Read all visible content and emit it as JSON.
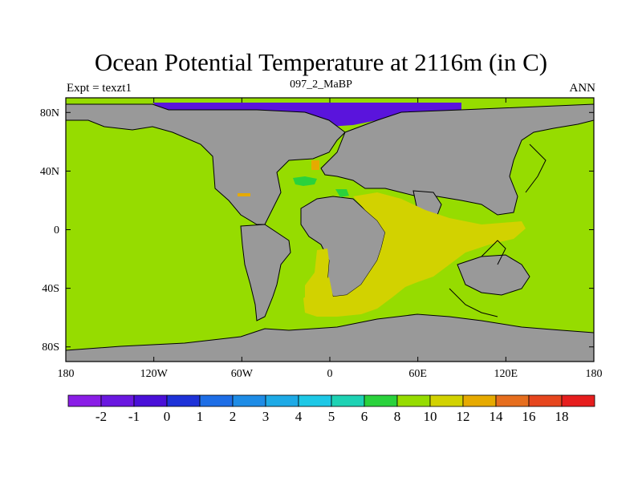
{
  "header": {
    "title": "Ocean Potential Temperature at 2116m (in C)",
    "left": "Expt = texzt1",
    "center": "097_2_MaBP",
    "right": "ANN"
  },
  "map": {
    "projection": "cylindrical-equidistant",
    "lon_range": [
      -180,
      180
    ],
    "lat_range": [
      -90,
      90
    ],
    "land_color": "#999999",
    "coastline_color": "#000000",
    "lon_ticks": [
      {
        "value": -180,
        "label": "180"
      },
      {
        "value": -120,
        "label": "120W"
      },
      {
        "value": -60,
        "label": "60W"
      },
      {
        "value": 0,
        "label": "0"
      },
      {
        "value": 60,
        "label": "60E"
      },
      {
        "value": 120,
        "label": "120E"
      },
      {
        "value": 180,
        "label": "180"
      }
    ],
    "lat_ticks": [
      {
        "value": 80,
        "label": "80N"
      },
      {
        "value": 40,
        "label": "40N"
      },
      {
        "value": 0,
        "label": "0"
      },
      {
        "value": -40,
        "label": "40S"
      },
      {
        "value": -80,
        "label": "80S"
      }
    ]
  },
  "colorbar": {
    "colors": [
      "#8a1ee6",
      "#6a18e0",
      "#4a10d8",
      "#1e32d8",
      "#1e6ee6",
      "#1e8ce6",
      "#1eaae6",
      "#1ec8e6",
      "#1ed2b4",
      "#2ad23c",
      "#96dc00",
      "#d2d200",
      "#e6aa00",
      "#e66e1e",
      "#e6461e",
      "#e61e1e"
    ],
    "labels": [
      "-2",
      "-1",
      "0",
      "1",
      "2",
      "3",
      "4",
      "5",
      "6",
      "8",
      "10",
      "12",
      "14",
      "16",
      "18"
    ]
  }
}
